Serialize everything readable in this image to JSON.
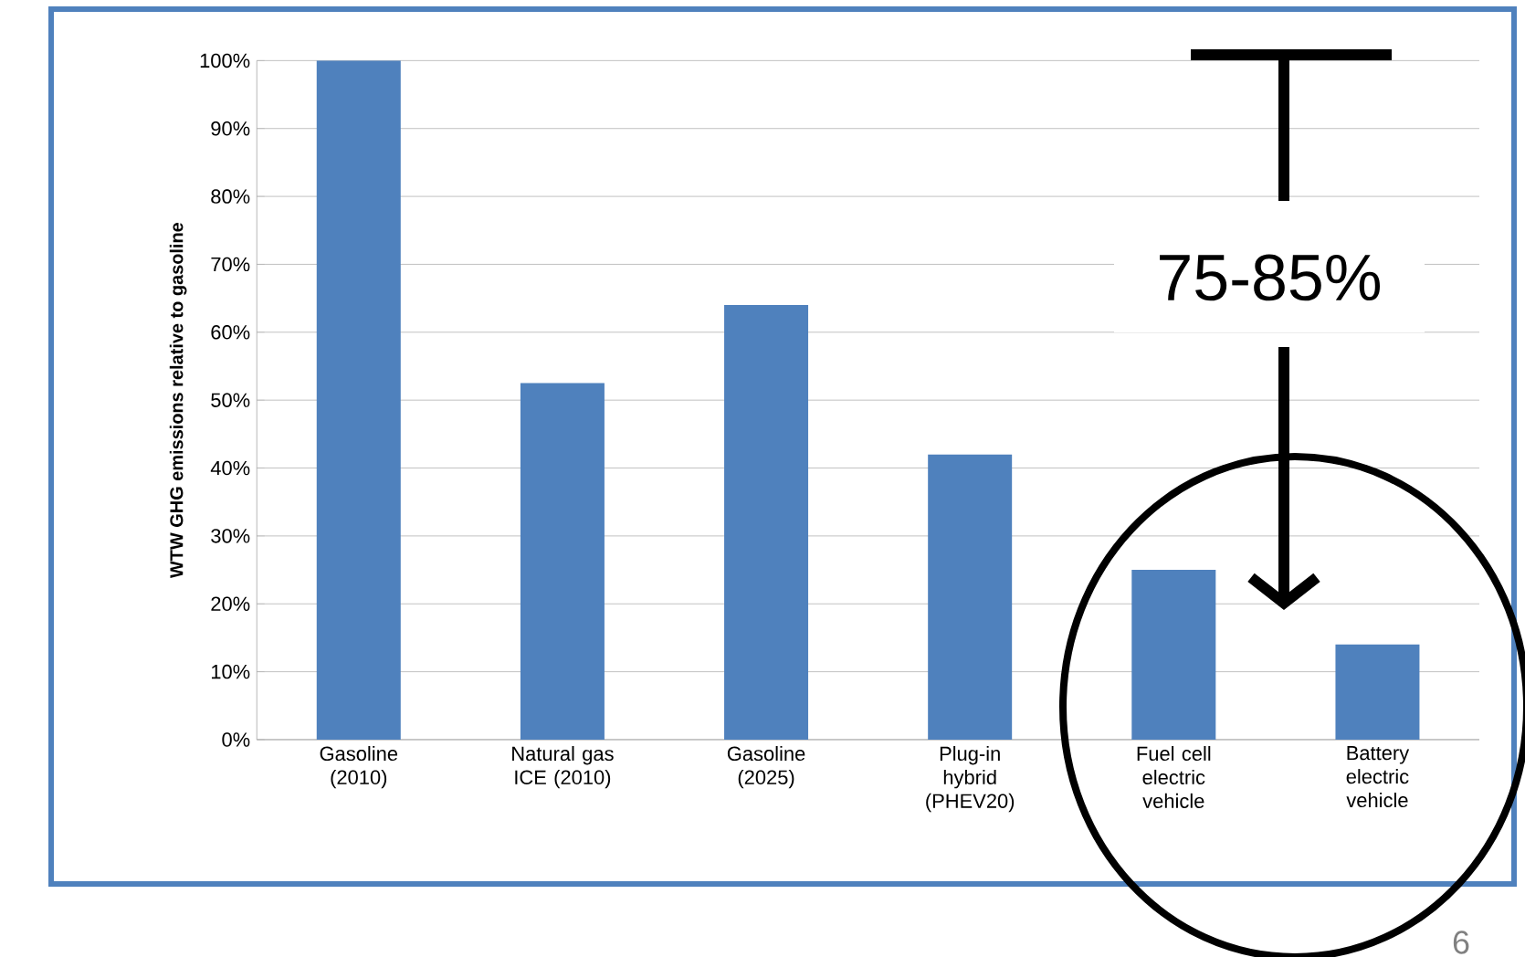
{
  "chart_data": {
    "type": "bar",
    "ylabel": "WTW GHG emissions relative to gasoline",
    "categories": [
      "Gasoline (2010)",
      "Natural gas ICE (2010)",
      "Gasoline (2025)",
      "Plug-in hybrid (PHEV20)",
      "Fuel cell electric vehicle",
      "Battery electric vehicle"
    ],
    "values": [
      100,
      52.5,
      64,
      42,
      25,
      14
    ],
    "color": "#4f81bd",
    "ylim": [
      0,
      100
    ],
    "yticks": [
      {
        "value": 0,
        "label": "0%"
      },
      {
        "value": 10,
        "label": "10%"
      },
      {
        "value": 20,
        "label": "20%"
      },
      {
        "value": 30,
        "label": "30%"
      },
      {
        "value": 40,
        "label": "40%"
      },
      {
        "value": 50,
        "label": "50%"
      },
      {
        "value": 60,
        "label": "60%"
      },
      {
        "value": 70,
        "label": "70%"
      },
      {
        "value": 80,
        "label": "80%"
      },
      {
        "value": 90,
        "label": "90%"
      },
      {
        "value": 100,
        "label": "100%"
      }
    ],
    "grid": "y",
    "annotations": [
      "75-85%",
      "6"
    ]
  }
}
